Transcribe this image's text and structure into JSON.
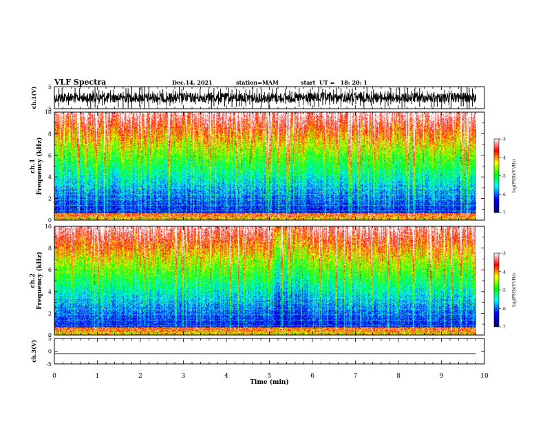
{
  "header": {
    "title": "VLF Spectra",
    "date": "Dec.14, 2021",
    "station": "station=MAM",
    "start": "start  UT =   18: 20: 1"
  },
  "chart_data": {
    "type": "heatmap",
    "xlabel": "Time  (min)",
    "xlim": [
      0,
      10
    ],
    "xticks": [
      "0",
      "1",
      "2",
      "3",
      "4",
      "5",
      "6",
      "7",
      "8",
      "9",
      "10"
    ],
    "panels": [
      {
        "id": "ch1_waveform",
        "type": "line",
        "ylabel": "ch.1(V)",
        "ylim": [
          -5,
          5
        ],
        "yticks": [
          "5",
          "-5"
        ]
      },
      {
        "id": "ch1_spectrogram",
        "type": "heatmap",
        "ylabel": [
          "ch.1",
          "Frequency  (kHz)"
        ],
        "ylim": [
          0,
          10
        ],
        "yticks": [
          "0",
          "2",
          "4",
          "6",
          "8",
          "10"
        ],
        "data_end_min": 9.8,
        "colorbar": {
          "label": "log(PSD)(V²/Hz)",
          "range": [
            -7,
            -3
          ],
          "ticks": [
            "-3",
            "-4",
            "-5",
            "-6",
            "-7"
          ]
        }
      },
      {
        "id": "ch2_spectrogram",
        "type": "heatmap",
        "ylabel": [
          "ch.2",
          "Frequency  (kHz)"
        ],
        "ylim": [
          0,
          10
        ],
        "yticks": [
          "0",
          "2",
          "4",
          "6",
          "8",
          "10"
        ],
        "data_end_min": 9.8,
        "colorbar": {
          "label": "log(PSD)(V²/Hz)",
          "range": [
            -7,
            -3
          ],
          "ticks": [
            "-3",
            "-4",
            "-5",
            "-6",
            "-7"
          ]
        }
      },
      {
        "id": "ch3_waveform",
        "type": "line",
        "ylabel": "ch.3(V)",
        "ylim": [
          -5,
          5
        ],
        "yticks": [
          "5",
          "0",
          "-5"
        ],
        "values": [
          -1,
          -1
        ]
      }
    ]
  }
}
